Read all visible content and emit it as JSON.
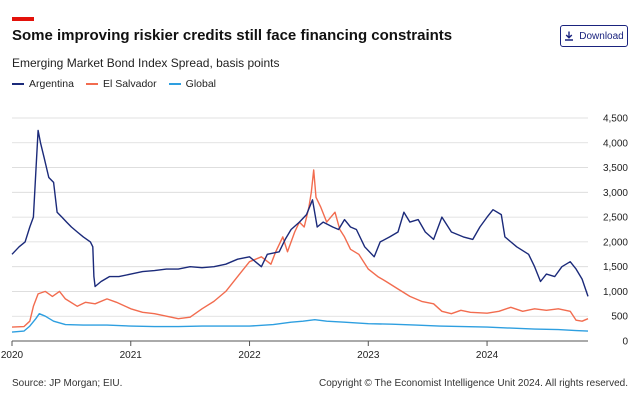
{
  "header": {
    "title": "Some improving riskier credits still face financing constraints",
    "subtitle": "Emerging Market Bond Index Spread, basis points",
    "download_label": "Download",
    "accent_color": "#e3120b"
  },
  "footer": {
    "source": "Source: JP Morgan; EIU.",
    "copyright": "Copyright © The Economist Intelligence Unit 2024. All rights reserved."
  },
  "chart_data": {
    "type": "line",
    "title": "Some improving riskier credits still face financing constraints",
    "subtitle": "Emerging Market Bond Index Spread, basis points",
    "xlabel": "",
    "ylabel": "",
    "x_ticks": [
      "2020",
      "2021",
      "2022",
      "2023",
      "2024"
    ],
    "x_range": [
      2020.0,
      2024.85
    ],
    "y_ticks": [
      0,
      500,
      1000,
      1500,
      2000,
      2500,
      3000,
      3500,
      4000,
      4500
    ],
    "y_tick_labels": [
      "0",
      "500",
      "1,000",
      "1,500",
      "2,000",
      "2,500",
      "3,000",
      "3,500",
      "4,000",
      "4,500"
    ],
    "ylim": [
      0,
      4500
    ],
    "grid": "horizontal",
    "y_axis_side": "right",
    "legend_position": "top-left",
    "series": [
      {
        "name": "Argentina",
        "color": "#1b2a7a",
        "points": [
          [
            2020.0,
            1750
          ],
          [
            2020.06,
            1900
          ],
          [
            2020.11,
            2000
          ],
          [
            2020.15,
            2300
          ],
          [
            2020.18,
            2500
          ],
          [
            2020.2,
            3400
          ],
          [
            2020.22,
            4250
          ],
          [
            2020.24,
            4000
          ],
          [
            2020.27,
            3700
          ],
          [
            2020.31,
            3300
          ],
          [
            2020.35,
            3200
          ],
          [
            2020.38,
            2600
          ],
          [
            2020.42,
            2500
          ],
          [
            2020.46,
            2400
          ],
          [
            2020.5,
            2300
          ],
          [
            2020.55,
            2200
          ],
          [
            2020.6,
            2100
          ],
          [
            2020.66,
            2000
          ],
          [
            2020.68,
            1900
          ],
          [
            2020.69,
            1300
          ],
          [
            2020.7,
            1100
          ],
          [
            2020.75,
            1200
          ],
          [
            2020.82,
            1300
          ],
          [
            2020.9,
            1300
          ],
          [
            2021.0,
            1350
          ],
          [
            2021.1,
            1400
          ],
          [
            2021.2,
            1420
          ],
          [
            2021.3,
            1450
          ],
          [
            2021.4,
            1450
          ],
          [
            2021.5,
            1500
          ],
          [
            2021.6,
            1480
          ],
          [
            2021.7,
            1500
          ],
          [
            2021.8,
            1550
          ],
          [
            2021.9,
            1650
          ],
          [
            2022.0,
            1700
          ],
          [
            2022.1,
            1500
          ],
          [
            2022.15,
            1750
          ],
          [
            2022.25,
            1800
          ],
          [
            2022.3,
            2050
          ],
          [
            2022.35,
            2250
          ],
          [
            2022.42,
            2400
          ],
          [
            2022.48,
            2550
          ],
          [
            2022.53,
            2850
          ],
          [
            2022.57,
            2300
          ],
          [
            2022.62,
            2400
          ],
          [
            2022.7,
            2300
          ],
          [
            2022.75,
            2250
          ],
          [
            2022.8,
            2450
          ],
          [
            2022.85,
            2300
          ],
          [
            2022.9,
            2250
          ],
          [
            2022.97,
            1900
          ],
          [
            2023.05,
            1700
          ],
          [
            2023.1,
            2000
          ],
          [
            2023.18,
            2100
          ],
          [
            2023.25,
            2200
          ],
          [
            2023.3,
            2600
          ],
          [
            2023.35,
            2400
          ],
          [
            2023.42,
            2450
          ],
          [
            2023.48,
            2200
          ],
          [
            2023.55,
            2050
          ],
          [
            2023.62,
            2500
          ],
          [
            2023.7,
            2200
          ],
          [
            2023.8,
            2100
          ],
          [
            2023.88,
            2050
          ],
          [
            2023.94,
            2300
          ],
          [
            2024.0,
            2500
          ],
          [
            2024.05,
            2650
          ],
          [
            2024.12,
            2550
          ],
          [
            2024.15,
            2100
          ],
          [
            2024.25,
            1900
          ],
          [
            2024.35,
            1750
          ],
          [
            2024.4,
            1500
          ],
          [
            2024.45,
            1200
          ],
          [
            2024.5,
            1350
          ],
          [
            2024.57,
            1300
          ],
          [
            2024.63,
            1500
          ],
          [
            2024.7,
            1600
          ],
          [
            2024.75,
            1450
          ],
          [
            2024.8,
            1250
          ],
          [
            2024.85,
            900
          ]
        ]
      },
      {
        "name": "El Salvador",
        "color": "#f26c4f",
        "points": [
          [
            2020.0,
            280
          ],
          [
            2020.1,
            290
          ],
          [
            2020.15,
            400
          ],
          [
            2020.18,
            700
          ],
          [
            2020.22,
            950
          ],
          [
            2020.28,
            1000
          ],
          [
            2020.34,
            900
          ],
          [
            2020.4,
            1000
          ],
          [
            2020.45,
            850
          ],
          [
            2020.55,
            700
          ],
          [
            2020.62,
            780
          ],
          [
            2020.7,
            750
          ],
          [
            2020.8,
            850
          ],
          [
            2020.88,
            780
          ],
          [
            2021.0,
            650
          ],
          [
            2021.1,
            580
          ],
          [
            2021.2,
            550
          ],
          [
            2021.3,
            500
          ],
          [
            2021.4,
            450
          ],
          [
            2021.5,
            480
          ],
          [
            2021.6,
            650
          ],
          [
            2021.7,
            800
          ],
          [
            2021.8,
            1000
          ],
          [
            2021.9,
            1300
          ],
          [
            2022.0,
            1600
          ],
          [
            2022.1,
            1700
          ],
          [
            2022.18,
            1550
          ],
          [
            2022.22,
            1800
          ],
          [
            2022.28,
            2100
          ],
          [
            2022.32,
            1800
          ],
          [
            2022.38,
            2200
          ],
          [
            2022.42,
            2400
          ],
          [
            2022.46,
            2300
          ],
          [
            2022.5,
            2700
          ],
          [
            2022.52,
            3000
          ],
          [
            2022.54,
            3450
          ],
          [
            2022.56,
            2900
          ],
          [
            2022.6,
            2700
          ],
          [
            2022.65,
            2400
          ],
          [
            2022.72,
            2600
          ],
          [
            2022.76,
            2250
          ],
          [
            2022.8,
            2100
          ],
          [
            2022.85,
            1850
          ],
          [
            2022.92,
            1750
          ],
          [
            2023.0,
            1450
          ],
          [
            2023.08,
            1300
          ],
          [
            2023.15,
            1200
          ],
          [
            2023.25,
            1050
          ],
          [
            2023.35,
            900
          ],
          [
            2023.45,
            800
          ],
          [
            2023.55,
            750
          ],
          [
            2023.62,
            600
          ],
          [
            2023.7,
            550
          ],
          [
            2023.78,
            620
          ],
          [
            2023.86,
            580
          ],
          [
            2024.0,
            560
          ],
          [
            2024.1,
            600
          ],
          [
            2024.2,
            680
          ],
          [
            2024.3,
            600
          ],
          [
            2024.4,
            650
          ],
          [
            2024.5,
            620
          ],
          [
            2024.6,
            650
          ],
          [
            2024.7,
            600
          ],
          [
            2024.75,
            420
          ],
          [
            2024.8,
            400
          ],
          [
            2024.85,
            450
          ]
        ]
      },
      {
        "name": "Global",
        "color": "#2e9fe0",
        "points": [
          [
            2020.0,
            180
          ],
          [
            2020.1,
            200
          ],
          [
            2020.15,
            300
          ],
          [
            2020.2,
            450
          ],
          [
            2020.23,
            550
          ],
          [
            2020.28,
            500
          ],
          [
            2020.35,
            400
          ],
          [
            2020.45,
            330
          ],
          [
            2020.6,
            320
          ],
          [
            2020.8,
            320
          ],
          [
            2021.0,
            300
          ],
          [
            2021.2,
            290
          ],
          [
            2021.4,
            290
          ],
          [
            2021.6,
            300
          ],
          [
            2021.8,
            300
          ],
          [
            2022.0,
            300
          ],
          [
            2022.2,
            330
          ],
          [
            2022.35,
            380
          ],
          [
            2022.45,
            400
          ],
          [
            2022.55,
            430
          ],
          [
            2022.65,
            400
          ],
          [
            2022.8,
            380
          ],
          [
            2023.0,
            350
          ],
          [
            2023.2,
            340
          ],
          [
            2023.4,
            320
          ],
          [
            2023.6,
            300
          ],
          [
            2023.8,
            290
          ],
          [
            2024.0,
            280
          ],
          [
            2024.2,
            260
          ],
          [
            2024.4,
            240
          ],
          [
            2024.6,
            230
          ],
          [
            2024.75,
            210
          ],
          [
            2024.85,
            200
          ]
        ]
      }
    ]
  }
}
